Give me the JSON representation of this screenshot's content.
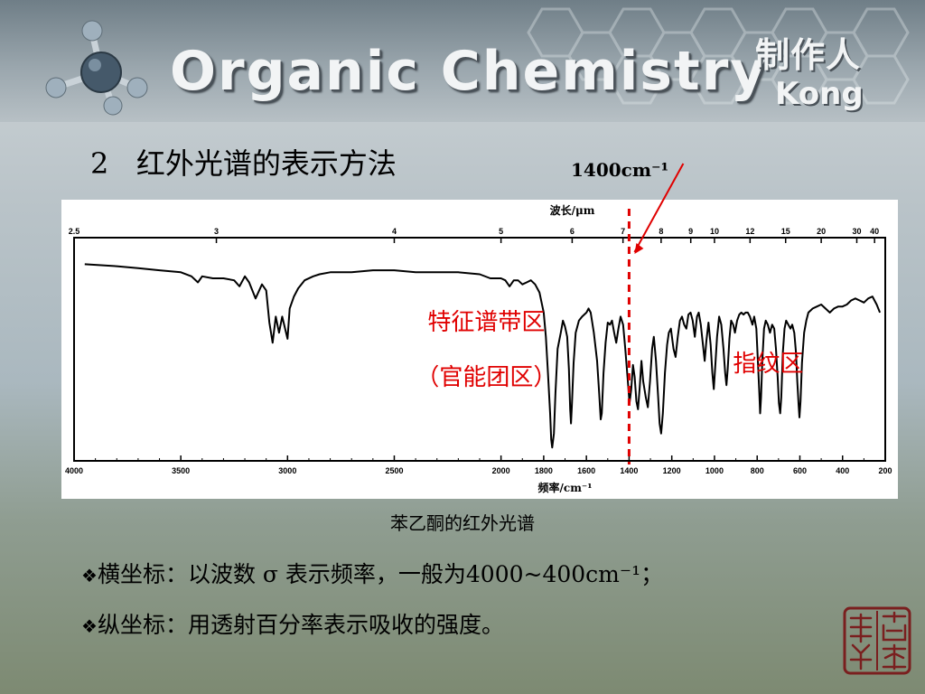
{
  "banner": {
    "title": "Organic Chemistry",
    "maker_label": "制作人",
    "author": "Kong"
  },
  "section": {
    "number": "2",
    "heading": "红外光谱的表示方法"
  },
  "chart_data": {
    "type": "line",
    "title": "",
    "top_axis_label": "波长/μm",
    "top_axis_ticks": [
      "2.5",
      "3",
      "4",
      "5",
      "6",
      "7",
      "8",
      "9",
      "10",
      "12",
      "15",
      "20",
      "30",
      "40"
    ],
    "xlabel": "频率/cm⁻¹",
    "xlim": [
      4000,
      200
    ],
    "x_ticks": [
      "4000",
      "3500",
      "3000",
      "2500",
      "2000",
      "1800",
      "1600",
      "1400",
      "1200",
      "1000",
      "800",
      "600",
      "400",
      "200"
    ],
    "ylabel": "",
    "callout": "1400cm⁻¹",
    "divider_x": 1400,
    "region_labels": {
      "left_line1": "特征谱带区",
      "left_line2": "（官能团区）",
      "right": "指纹区"
    },
    "colors": {
      "line": "#000000",
      "divider": "#e00000",
      "region_text": "#e00000",
      "arrow": "#e00000"
    },
    "series": [
      {
        "points": [
          [
            3950,
            94
          ],
          [
            3800,
            93
          ],
          [
            3700,
            92
          ],
          [
            3600,
            91
          ],
          [
            3500,
            90
          ],
          [
            3450,
            88
          ],
          [
            3420,
            85
          ],
          [
            3400,
            88
          ],
          [
            3350,
            87
          ],
          [
            3300,
            87
          ],
          [
            3250,
            86
          ],
          [
            3225,
            83
          ],
          [
            3200,
            88
          ],
          [
            3180,
            85
          ],
          [
            3150,
            77
          ],
          [
            3120,
            84
          ],
          [
            3100,
            81
          ],
          [
            3085,
            65
          ],
          [
            3070,
            55
          ],
          [
            3055,
            68
          ],
          [
            3040,
            60
          ],
          [
            3025,
            68
          ],
          [
            3000,
            57
          ],
          [
            2990,
            72
          ],
          [
            2970,
            78
          ],
          [
            2950,
            82
          ],
          [
            2920,
            86
          ],
          [
            2880,
            88
          ],
          [
            2850,
            89
          ],
          [
            2800,
            90
          ],
          [
            2700,
            90
          ],
          [
            2600,
            91
          ],
          [
            2500,
            91
          ],
          [
            2400,
            90
          ],
          [
            2300,
            90
          ],
          [
            2200,
            90
          ],
          [
            2100,
            89
          ],
          [
            2050,
            87
          ],
          [
            2000,
            87
          ],
          [
            1980,
            86
          ],
          [
            1960,
            83
          ],
          [
            1940,
            86
          ],
          [
            1920,
            86
          ],
          [
            1900,
            84
          ],
          [
            1880,
            85
          ],
          [
            1860,
            86
          ],
          [
            1840,
            84
          ],
          [
            1820,
            80
          ],
          [
            1800,
            70
          ],
          [
            1790,
            58
          ],
          [
            1780,
            40
          ],
          [
            1770,
            20
          ],
          [
            1765,
            7
          ],
          [
            1760,
            3
          ],
          [
            1752,
            10
          ],
          [
            1745,
            30
          ],
          [
            1735,
            52
          ],
          [
            1720,
            60
          ],
          [
            1710,
            66
          ],
          [
            1700,
            63
          ],
          [
            1690,
            58
          ],
          [
            1682,
            42
          ],
          [
            1676,
            22
          ],
          [
            1672,
            15
          ],
          [
            1668,
            24
          ],
          [
            1660,
            45
          ],
          [
            1650,
            60
          ],
          [
            1635,
            66
          ],
          [
            1620,
            68
          ],
          [
            1600,
            70
          ],
          [
            1590,
            72
          ],
          [
            1580,
            70
          ],
          [
            1565,
            60
          ],
          [
            1550,
            46
          ],
          [
            1540,
            30
          ],
          [
            1533,
            17
          ],
          [
            1528,
            20
          ],
          [
            1520,
            40
          ],
          [
            1510,
            55
          ],
          [
            1500,
            65
          ],
          [
            1490,
            64
          ],
          [
            1480,
            66
          ],
          [
            1470,
            60
          ],
          [
            1460,
            55
          ],
          [
            1450,
            62
          ],
          [
            1440,
            68
          ],
          [
            1428,
            64
          ],
          [
            1418,
            52
          ],
          [
            1405,
            35
          ],
          [
            1398,
            25
          ],
          [
            1390,
            32
          ],
          [
            1382,
            44
          ],
          [
            1374,
            38
          ],
          [
            1366,
            26
          ],
          [
            1358,
            22
          ],
          [
            1350,
            33
          ],
          [
            1342,
            46
          ],
          [
            1334,
            36
          ],
          [
            1322,
            28
          ],
          [
            1312,
            23
          ],
          [
            1302,
            36
          ],
          [
            1292,
            52
          ],
          [
            1284,
            58
          ],
          [
            1274,
            46
          ],
          [
            1264,
            28
          ],
          [
            1257,
            15
          ],
          [
            1250,
            10
          ],
          [
            1242,
            20
          ],
          [
            1232,
            40
          ],
          [
            1222,
            54
          ],
          [
            1214,
            60
          ],
          [
            1204,
            62
          ],
          [
            1192,
            52
          ],
          [
            1182,
            48
          ],
          [
            1172,
            58
          ],
          [
            1162,
            66
          ],
          [
            1152,
            68
          ],
          [
            1142,
            64
          ],
          [
            1132,
            62
          ],
          [
            1122,
            69
          ],
          [
            1112,
            70
          ],
          [
            1102,
            66
          ],
          [
            1092,
            58
          ],
          [
            1082,
            68
          ],
          [
            1074,
            70
          ],
          [
            1064,
            64
          ],
          [
            1054,
            54
          ],
          [
            1046,
            46
          ],
          [
            1038,
            56
          ],
          [
            1028,
            65
          ],
          [
            1018,
            54
          ],
          [
            1010,
            40
          ],
          [
            1003,
            32
          ],
          [
            996,
            44
          ],
          [
            988,
            58
          ],
          [
            978,
            68
          ],
          [
            968,
            64
          ],
          [
            958,
            52
          ],
          [
            950,
            40
          ],
          [
            944,
            34
          ],
          [
            938,
            42
          ],
          [
            930,
            57
          ],
          [
            922,
            66
          ],
          [
            912,
            64
          ],
          [
            904,
            60
          ],
          [
            894,
            66
          ],
          [
            884,
            69
          ],
          [
            874,
            70
          ],
          [
            864,
            69
          ],
          [
            854,
            70
          ],
          [
            844,
            70
          ],
          [
            834,
            68
          ],
          [
            822,
            64
          ],
          [
            814,
            68
          ],
          [
            804,
            62
          ],
          [
            796,
            44
          ],
          [
            790,
            30
          ],
          [
            786,
            20
          ],
          [
            782,
            28
          ],
          [
            776,
            46
          ],
          [
            768,
            62
          ],
          [
            760,
            66
          ],
          [
            750,
            64
          ],
          [
            740,
            60
          ],
          [
            730,
            64
          ],
          [
            720,
            62
          ],
          [
            712,
            52
          ],
          [
            704,
            38
          ],
          [
            698,
            25
          ],
          [
            692,
            20
          ],
          [
            687,
            28
          ],
          [
            680,
            50
          ],
          [
            672,
            62
          ],
          [
            664,
            66
          ],
          [
            654,
            64
          ],
          [
            644,
            62
          ],
          [
            636,
            64
          ],
          [
            626,
            60
          ],
          [
            618,
            50
          ],
          [
            612,
            36
          ],
          [
            606,
            24
          ],
          [
            602,
            18
          ],
          [
            597,
            26
          ],
          [
            590,
            45
          ],
          [
            580,
            60
          ],
          [
            570,
            66
          ],
          [
            560,
            70
          ],
          [
            540,
            72
          ],
          [
            520,
            73
          ],
          [
            500,
            74
          ],
          [
            480,
            72
          ],
          [
            460,
            70
          ],
          [
            440,
            72
          ],
          [
            420,
            73
          ],
          [
            400,
            73
          ],
          [
            380,
            74
          ],
          [
            360,
            76
          ],
          [
            340,
            77
          ],
          [
            320,
            76
          ],
          [
            300,
            75
          ],
          [
            280,
            77
          ],
          [
            260,
            78
          ],
          [
            240,
            74
          ],
          [
            225,
            70
          ]
        ]
      }
    ]
  },
  "caption": "苯乙酮的红外光谱",
  "notes": {
    "bullet": "❖",
    "line1": "横坐标：以波数 σ 表示频率，一般为4000~400cm⁻¹；",
    "line2": "纵坐标：用透射百分率表示吸收的强度。"
  },
  "seal_icon": "seal-stamp-icon"
}
